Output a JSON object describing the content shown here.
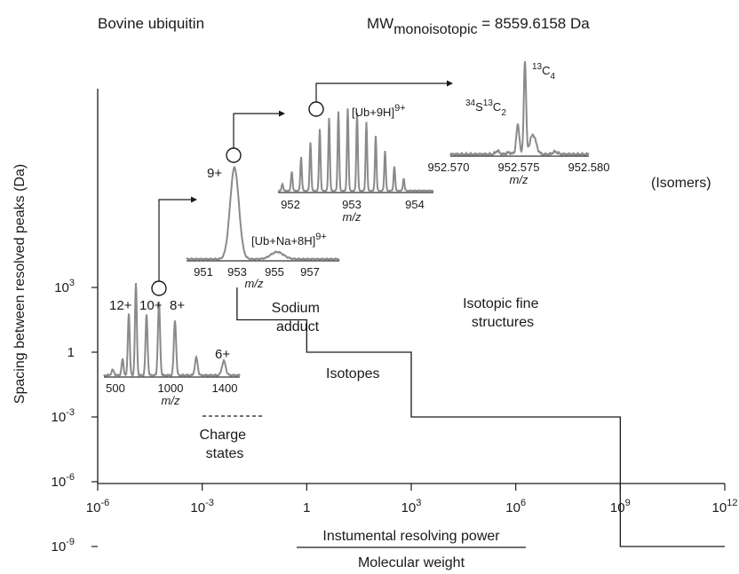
{
  "chart_data": {
    "type": "line",
    "header_left": "Bovine ubiquitin",
    "header_right": {
      "prefix": "MW",
      "sub": "monoisotopic",
      "suffix": "= 8559.6158 Da"
    },
    "x_axis": {
      "label_top": "Instumental resolving power",
      "label_bottom": "Molecular weight",
      "ticks": [
        {
          "base": "10",
          "exp": "-6"
        },
        {
          "base": "10",
          "exp": "-3"
        },
        {
          "base": "1",
          "exp": ""
        },
        {
          "base": "10",
          "exp": "3"
        },
        {
          "base": "10",
          "exp": "6"
        },
        {
          "base": "10",
          "exp": "9"
        },
        {
          "base": "10",
          "exp": "12"
        }
      ]
    },
    "y_axis": {
      "label": "Spacing between resolved peaks (Da)",
      "ticks": [
        {
          "base": "10",
          "exp": "-9"
        },
        {
          "base": "10",
          "exp": "-6"
        },
        {
          "base": "10",
          "exp": "-3"
        },
        {
          "base": "1",
          "exp": ""
        },
        {
          "base": "10",
          "exp": "3"
        }
      ]
    },
    "staircase": [
      {
        "x_exp": -2,
        "y_exp": 3
      },
      {
        "x_exp": 0,
        "y_exp": 1.5
      },
      {
        "x_exp": 3,
        "y_exp": 0
      },
      {
        "x_exp": 9,
        "y_exp": -3
      },
      {
        "x_exp": 12,
        "y_exp": -9
      }
    ],
    "region_labels": {
      "charge_states": [
        "Charge",
        "states"
      ],
      "sodium_adduct": [
        "Sodium",
        "adduct"
      ],
      "isotopes": "Isotopes",
      "isotopic_fine": [
        "Isotopic fine",
        "structures"
      ],
      "isomers": "(Isomers)"
    },
    "insets": {
      "charge": {
        "peak_labels": [
          "12+",
          "10+",
          "8+",
          "6+"
        ],
        "ticks": [
          "500",
          "1000",
          "1400"
        ],
        "axis_label": "m/z"
      },
      "sodium": {
        "peak_label": "9+",
        "adduct_label": "[Ub+Na+8H]",
        "adduct_sup": "9+",
        "ticks": [
          "951",
          "953",
          "955",
          "957"
        ],
        "axis_label": "m/z"
      },
      "isotopes": {
        "ion_label": "[Ub+9H]",
        "ion_sup": "9+",
        "ticks": [
          "952",
          "953",
          "954"
        ],
        "axis_label": "m/z"
      },
      "fine": {
        "label_c4": {
          "pre_sup": "13",
          "main": "C",
          "sub": "4"
        },
        "label_sc2": {
          "sup1": "34",
          "s": "S",
          "sup2": "13",
          "c": "C",
          "sub": "2"
        },
        "ticks": [
          "952.570",
          "952.575",
          "952.580"
        ],
        "axis_label": "m/z"
      }
    },
    "colors": {
      "line": "#1a1a1a",
      "spectrum": "#8a8a8a"
    }
  }
}
